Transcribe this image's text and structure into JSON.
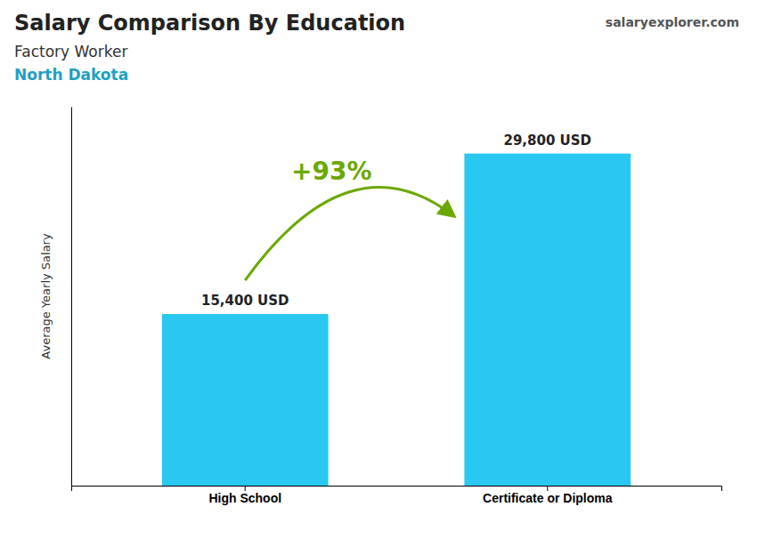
{
  "chart_data": {
    "type": "bar",
    "title": "Salary Comparison By Education",
    "subtitle": "Factory Worker",
    "ylabel": "Average Yearly Salary",
    "annotations": [
      "North Dakota",
      "+93%",
      "salaryexplorer.com"
    ],
    "categories": [
      "High School",
      "Certificate or Diploma"
    ],
    "values": [
      15400,
      29800
    ],
    "value_labels": [
      "15,400 USD",
      "29,800 USD"
    ],
    "color": "#29C8F0",
    "ylim": [
      0,
      34000
    ],
    "grid": false,
    "data_labels": true,
    "tick_labels": "x"
  }
}
